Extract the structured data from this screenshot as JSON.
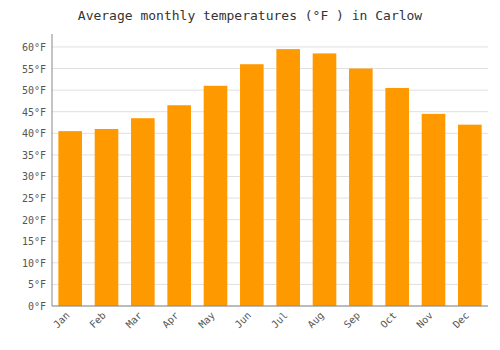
{
  "chart_data": {
    "type": "bar",
    "title": "Average monthly temperatures (°F ) in Carlow",
    "categories": [
      "Jan",
      "Feb",
      "Mar",
      "Apr",
      "May",
      "Jun",
      "Jul",
      "Aug",
      "Sep",
      "Oct",
      "Nov",
      "Dec"
    ],
    "values": [
      40.5,
      41.0,
      43.5,
      46.5,
      51.0,
      56.0,
      59.5,
      58.5,
      55.0,
      50.5,
      44.5,
      42.0
    ],
    "color": "#FF9900",
    "ylim": [
      0,
      63
    ],
    "yticks": [
      {
        "value": 0,
        "label": "0°F"
      },
      {
        "value": 5,
        "label": "5°F"
      },
      {
        "value": 10,
        "label": "10°F"
      },
      {
        "value": 15,
        "label": "15°F"
      },
      {
        "value": 20,
        "label": "20°F"
      },
      {
        "value": 25,
        "label": "25°F"
      },
      {
        "value": 30,
        "label": "30°F"
      },
      {
        "value": 35,
        "label": "35°F"
      },
      {
        "value": 40,
        "label": "40°F"
      },
      {
        "value": 45,
        "label": "45°F"
      },
      {
        "value": 50,
        "label": "50°F"
      },
      {
        "value": 55,
        "label": "55°F"
      },
      {
        "value": 60,
        "label": "60°F"
      }
    ],
    "grid": true
  }
}
